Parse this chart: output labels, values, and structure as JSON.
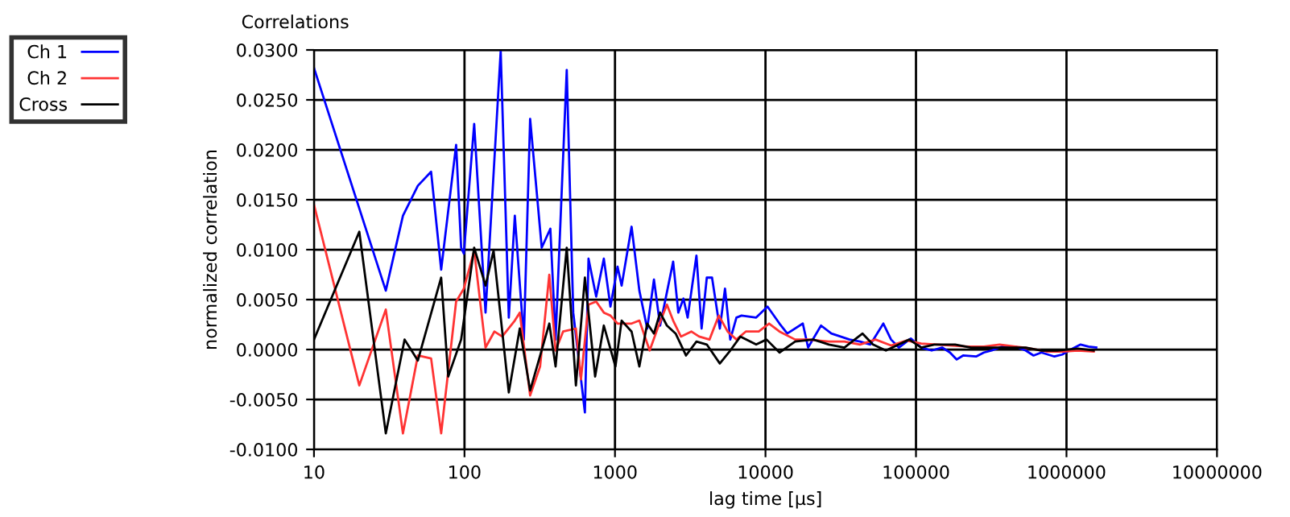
{
  "chart_data": {
    "type": "line",
    "title": "Correlations",
    "xlabel": "lag time [µs]",
    "ylabel": "normalized correlation",
    "log": "x",
    "grid": true,
    "legend": "top left",
    "marker": "none",
    "line_style": "solid",
    "xlim": [
      10,
      10000000
    ],
    "xticks": [
      10,
      100,
      1000,
      10000,
      100000,
      1000000,
      10000000
    ],
    "ylim": [
      -0.01,
      0.03
    ],
    "yticks": [
      {
        "value": -0.01,
        "label": "-0.0100"
      },
      {
        "value": -0.005,
        "label": "-0.0050"
      },
      {
        "value": 0,
        "label": "0.0000"
      },
      {
        "value": 0.005,
        "label": "0.0050"
      },
      {
        "value": 0.01,
        "label": "0.0100"
      },
      {
        "value": 0.015,
        "label": "0.0150"
      },
      {
        "value": 0.02,
        "label": "0.0200"
      },
      {
        "value": 0.025,
        "label": "0.0250"
      },
      {
        "value": 0.03,
        "label": "0.0300"
      }
    ],
    "series": [
      {
        "name": "Ch 1",
        "color": "#0000ff",
        "x": [
          10,
          30,
          39,
          49,
          60,
          70,
          88,
          95,
          99,
          116,
          138,
          174,
          197,
          216,
          248,
          273,
          326,
          372,
          403,
          478,
          528,
          631,
          667,
          750,
          843,
          933,
          1040,
          1107,
          1289,
          1452,
          1637,
          1815,
          1995,
          2435,
          2634,
          2851,
          3040,
          3477,
          3763,
          4074,
          4414,
          4973,
          5383,
          5834,
          6412,
          6934,
          8670,
          10320,
          12390,
          13960,
          17700,
          19190,
          23390,
          27400,
          36200,
          42450,
          49770,
          60700,
          68300,
          76900,
          92400,
          108300,
          127100,
          149200,
          168200,
          186600,
          205500,
          250800,
          282700,
          318600,
          373900,
          456800,
          535900,
          604200,
          681300,
          831800,
          937000,
          1101000,
          1241000,
          1399000,
          1578000
        ],
        "values": [
          0.0282,
          0.0059,
          0.0134,
          0.0164,
          0.0178,
          0.008,
          0.0205,
          0.0102,
          0.0096,
          0.0226,
          0.0037,
          0.0299,
          0.0032,
          0.0134,
          0.001,
          0.0231,
          0.0102,
          0.0121,
          0.001,
          0.028,
          0.0037,
          -0.0063,
          0.0091,
          0.0053,
          0.0091,
          0.0043,
          0.0083,
          0.0064,
          0.0123,
          0.0059,
          0.0021,
          0.007,
          0.0024,
          0.0088,
          0.0037,
          0.0051,
          0.0032,
          0.0094,
          0.0021,
          0.0072,
          0.0072,
          0.0021,
          0.0061,
          0.001,
          0.0032,
          0.0034,
          0.0032,
          0.0043,
          0.0026,
          0.0016,
          0.0026,
          0.0002,
          0.0024,
          0.0016,
          0.001,
          0.0008,
          0.0005,
          0.0026,
          0.001,
          0.0002,
          0.0011,
          0.0002,
          -0.0001,
          0.0002,
          -0.0003,
          -0.001,
          -0.0006,
          -0.0007,
          -0.0003,
          -0.0001,
          0.0003,
          0.0003,
          -0.0001,
          -0.0006,
          -0.0003,
          -0.0007,
          -0.0005,
          0.0001,
          0.0005,
          0.0003,
          0.0002
        ]
      },
      {
        "name": "Ch 2",
        "color": "#ff3333",
        "x": [
          10,
          20,
          30,
          39,
          49,
          60,
          70,
          88,
          99,
          116,
          138,
          158,
          178,
          216,
          233,
          273,
          318,
          366,
          403,
          452,
          550,
          594,
          667,
          750,
          843,
          933,
          1040,
          1289,
          1452,
          1700,
          1918,
          2213,
          2435,
          2742,
          3215,
          3620,
          4246,
          4898,
          5602,
          6412,
          7396,
          9016,
          10570,
          12390,
          15740,
          19190,
          26360,
          33430,
          42450,
          53830,
          68300,
          86700,
          108300,
          137700,
          175000,
          222300,
          282700,
          359500,
          456800,
          580300,
          737400,
          937000,
          1191000,
          1517000
        ],
        "values": [
          0.0145,
          -0.0036,
          0.004,
          -0.0084,
          -0.0006,
          -0.0009,
          -0.0084,
          0.0048,
          0.0061,
          0.0099,
          0.0002,
          0.0018,
          0.0013,
          0.0029,
          0.0037,
          -0.0046,
          -0.0017,
          0.0075,
          -0.0001,
          0.0018,
          0.0021,
          -0.003,
          0.0045,
          0.0048,
          0.0037,
          0.0034,
          0.0026,
          0.0026,
          0.0029,
          -0.0001,
          0.0021,
          0.0045,
          0.0029,
          0.0013,
          0.0018,
          0.0013,
          0.001,
          0.0034,
          0.0018,
          0.001,
          0.0018,
          0.0018,
          0.0026,
          0.0018,
          0.001,
          0.001,
          0.0008,
          0.0008,
          0.0005,
          0.001,
          0.0004,
          0.0009,
          0.0006,
          0.0005,
          0.0004,
          0.0003,
          0.0003,
          0.0005,
          0.0003,
          0.0001,
          -0.0002,
          -0.0002,
          -0.0001,
          -0.0002
        ]
      },
      {
        "name": "Cross",
        "color": "#000000",
        "x": [
          10,
          20,
          30,
          40,
          49,
          70,
          78,
          95,
          116,
          138,
          156,
          197,
          233,
          273,
          366,
          403,
          478,
          550,
          631,
          738,
          843,
          1007,
          1107,
          1289,
          1452,
          1637,
          1815,
          1995,
          2213,
          2529,
          2963,
          3477,
          4074,
          4973,
          5834,
          6818,
          8670,
          10160,
          12390,
          15740,
          20750,
          26360,
          33430,
          44150,
          51760,
          63100,
          76900,
          90200,
          108300,
          132400,
          182000,
          231700,
          318600,
          421700,
          535900,
          681300,
          866400,
          1191000,
          1517000
        ],
        "values": [
          0.001,
          0.0118,
          -0.0084,
          0.001,
          -0.0011,
          0.0072,
          -0.0027,
          0.001,
          0.0102,
          0.0064,
          0.0099,
          -0.0043,
          0.0021,
          -0.0041,
          0.0026,
          -0.0017,
          0.0102,
          -0.0036,
          0.0072,
          -0.0027,
          0.0024,
          -0.0017,
          0.0029,
          0.0018,
          -0.0017,
          0.0026,
          0.0016,
          0.0037,
          0.0024,
          0.0016,
          -0.0006,
          0.0008,
          0.0005,
          -0.0014,
          -0.0001,
          0.0013,
          0.0005,
          0.001,
          -0.0003,
          0.0008,
          0.001,
          0.0005,
          0.0002,
          0.0016,
          0.0005,
          -0.0001,
          0.0005,
          0.001,
          0.0002,
          0.0005,
          0.0005,
          0.0002,
          0.0002,
          0.0002,
          0.0002,
          -0.0001,
          -0.0001,
          0.0001,
          -0.0001
        ]
      }
    ]
  }
}
